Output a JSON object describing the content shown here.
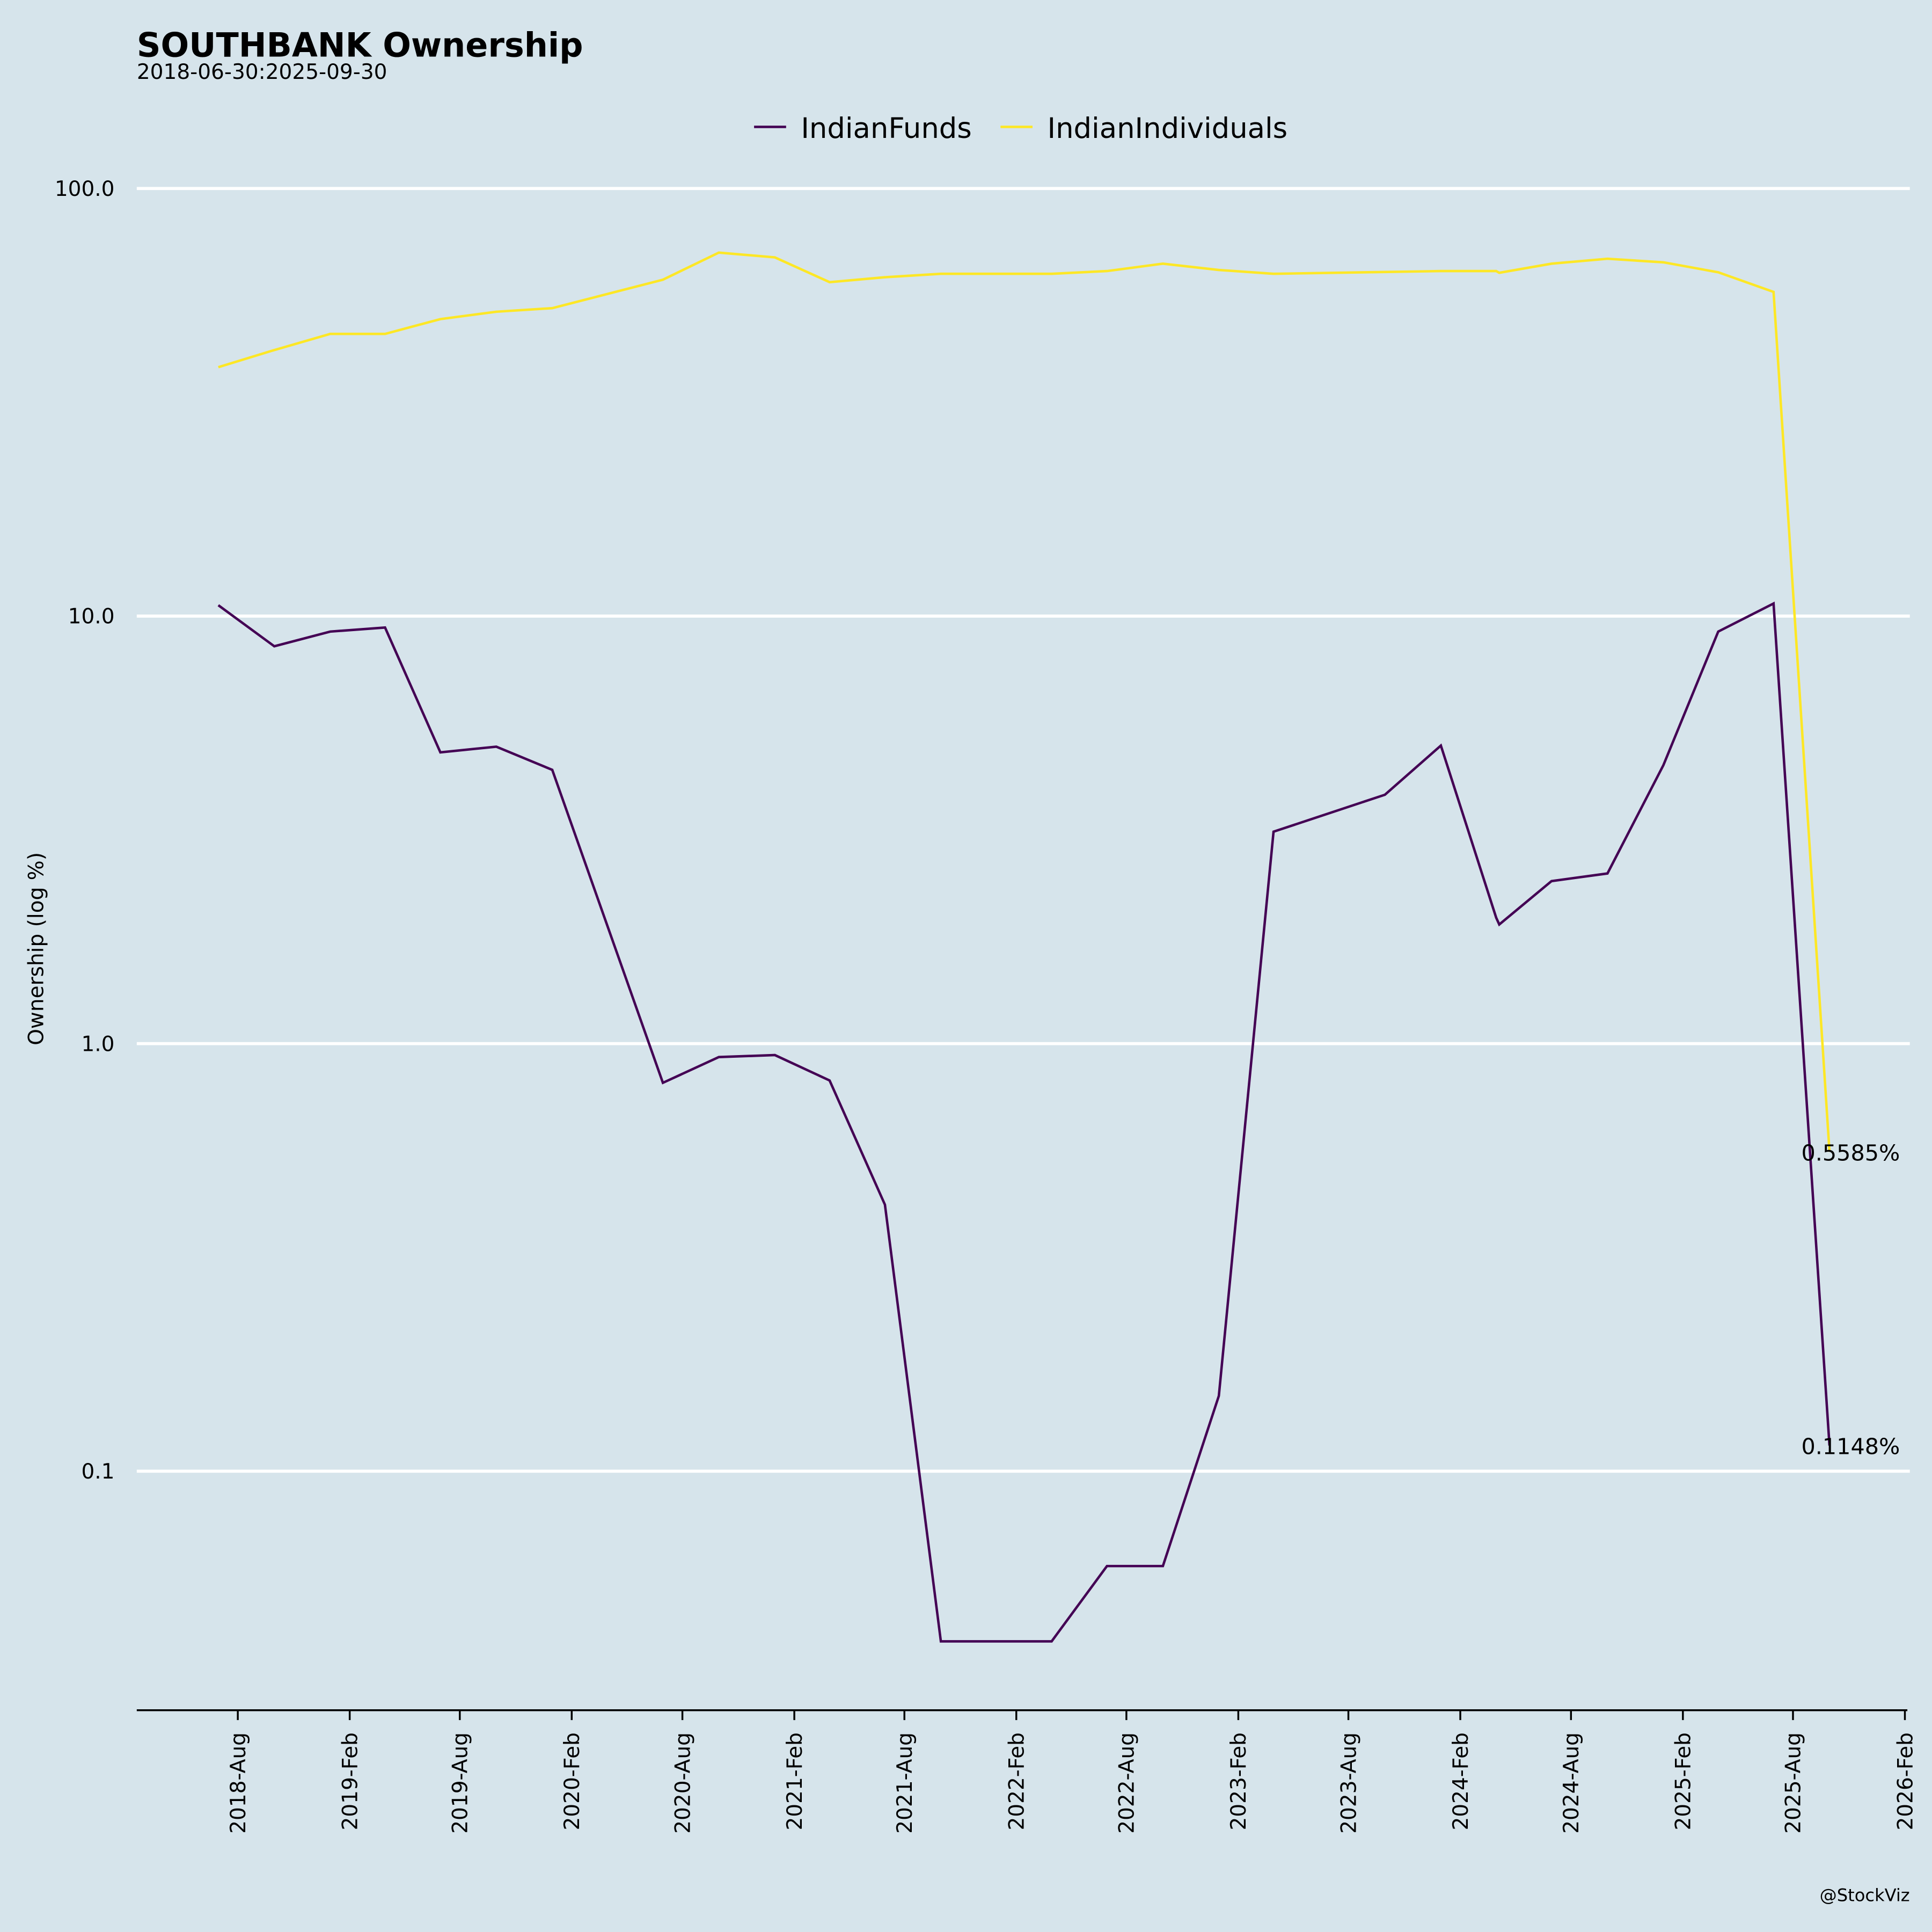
{
  "chart_data": {
    "type": "line",
    "title": "SOUTHBANK Ownership",
    "subtitle": "2018-06-30:2025-09-30",
    "xlabel": "",
    "ylabel": "Ownership (log %)",
    "yscale": "log",
    "ylim": [
      0.0276,
      150
    ],
    "yticks": [
      {
        "v": 100,
        "label": "100.0"
      },
      {
        "v": 10,
        "label": "10.0"
      },
      {
        "v": 1,
        "label": "1.0"
      },
      {
        "v": 0.1,
        "label": "0.1"
      }
    ],
    "xticks": [
      "2018-Aug",
      "2019-Feb",
      "2019-Aug",
      "2020-Feb",
      "2020-Aug",
      "2021-Feb",
      "2021-Aug",
      "2022-Feb",
      "2022-Aug",
      "2023-Feb",
      "2023-Aug",
      "2024-Feb",
      "2024-Aug",
      "2025-Feb",
      "2025-Aug",
      "2026-Feb"
    ],
    "legend_position": "top-center",
    "grid": true,
    "series": [
      {
        "name": "IndianFunds",
        "color": "#440154",
        "points": [
          [
            "2018-06-30",
            10.6
          ],
          [
            "2018-09-30",
            8.5
          ],
          [
            "2018-12-31",
            9.2
          ],
          [
            "2019-03-31",
            9.4
          ],
          [
            "2019-06-30",
            4.8
          ],
          [
            "2019-09-30",
            4.95
          ],
          [
            "2019-12-31",
            4.37
          ],
          [
            "2020-06-30",
            0.81
          ],
          [
            "2020-09-30",
            0.93
          ],
          [
            "2020-12-31",
            0.94
          ],
          [
            "2021-03-31",
            0.82
          ],
          [
            "2021-06-30",
            0.42
          ],
          [
            "2021-09-30",
            0.04
          ],
          [
            "2021-12-31",
            0.04
          ],
          [
            "2022-03-31",
            0.04
          ],
          [
            "2022-06-30",
            0.06
          ],
          [
            "2022-09-30",
            0.06
          ],
          [
            "2022-12-31",
            0.15
          ],
          [
            "2023-03-31",
            3.13
          ],
          [
            "2023-09-30",
            3.82
          ],
          [
            "2023-12-31",
            4.98
          ],
          [
            "2024-03-31",
            1.97
          ],
          [
            "2024-04-05",
            1.9
          ],
          [
            "2024-06-30",
            2.4
          ],
          [
            "2024-09-30",
            2.5
          ],
          [
            "2024-12-31",
            4.48
          ],
          [
            "2025-03-31",
            9.2
          ],
          [
            "2025-06-30",
            10.7
          ],
          [
            "2025-09-30",
            0.1148
          ]
        ]
      },
      {
        "name": "IndianIndividuals",
        "color": "#fde725",
        "points": [
          [
            "2018-06-30",
            38.2
          ],
          [
            "2018-09-30",
            41.9
          ],
          [
            "2018-12-31",
            45.7
          ],
          [
            "2019-03-31",
            45.7
          ],
          [
            "2019-06-30",
            49.5
          ],
          [
            "2019-09-30",
            51.5
          ],
          [
            "2019-12-31",
            52.5
          ],
          [
            "2020-06-30",
            61.2
          ],
          [
            "2020-09-30",
            70.8
          ],
          [
            "2020-12-31",
            69.0
          ],
          [
            "2021-03-31",
            60.4
          ],
          [
            "2021-06-30",
            62.0
          ],
          [
            "2021-09-30",
            63.2
          ],
          [
            "2022-03-31",
            63.2
          ],
          [
            "2022-06-30",
            64.1
          ],
          [
            "2022-09-30",
            66.7
          ],
          [
            "2022-12-31",
            64.5
          ],
          [
            "2023-03-31",
            63.2
          ],
          [
            "2023-12-31",
            64.1
          ],
          [
            "2024-03-31",
            64.1
          ],
          [
            "2024-04-05",
            63.5
          ],
          [
            "2024-06-30",
            66.7
          ],
          [
            "2024-09-30",
            68.5
          ],
          [
            "2024-12-31",
            67.2
          ],
          [
            "2025-03-31",
            63.7
          ],
          [
            "2025-06-30",
            57.3
          ],
          [
            "2025-09-30",
            0.5585
          ]
        ]
      }
    ],
    "annotations": [
      {
        "label": "0.5585%",
        "value": 0.5585
      },
      {
        "label": "0.1148%",
        "value": 0.1148
      }
    ]
  },
  "watermark": "@StockViz"
}
